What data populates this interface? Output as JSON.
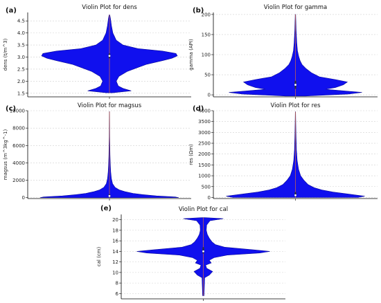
{
  "colors": {
    "violin": "#1010ee",
    "grid": "#cfcfcf",
    "axis": "#000000",
    "median": "#ffffff",
    "whisker": "#d96c3a"
  },
  "chart_data": [
    {
      "type": "violin",
      "panel_label": "(a)",
      "title": "Violin Plot for dens",
      "ylabel": "dens (t/m^3)",
      "ylim": [
        1.35,
        4.85
      ],
      "yticks": [
        "1.5",
        "2.0",
        "2.5",
        "3.0",
        "3.5",
        "4.0",
        "4.5"
      ],
      "xtick": "",
      "median": 3.05,
      "q1": 2.95,
      "q3": 3.15,
      "min": 1.52,
      "max": 4.75,
      "density": [
        [
          1.52,
          0.05
        ],
        [
          1.6,
          0.32
        ],
        [
          1.7,
          0.2
        ],
        [
          1.8,
          0.13
        ],
        [
          2.0,
          0.1
        ],
        [
          2.2,
          0.14
        ],
        [
          2.4,
          0.26
        ],
        [
          2.55,
          0.4
        ],
        [
          2.7,
          0.55
        ],
        [
          2.85,
          0.78
        ],
        [
          2.95,
          0.92
        ],
        [
          3.05,
          1.0
        ],
        [
          3.15,
          0.98
        ],
        [
          3.25,
          0.78
        ],
        [
          3.35,
          0.42
        ],
        [
          3.5,
          0.2
        ],
        [
          3.7,
          0.1
        ],
        [
          4.0,
          0.05
        ],
        [
          4.3,
          0.03
        ],
        [
          4.6,
          0.015
        ],
        [
          4.75,
          0.005
        ]
      ]
    },
    {
      "type": "violin",
      "panel_label": "(b)",
      "title": "Violin Plot for gamma",
      "ylabel": "gamma (API)",
      "ylim": [
        -5,
        205
      ],
      "yticks": [
        "0",
        "50",
        "100",
        "150",
        "200"
      ],
      "xtick": "",
      "median": 25,
      "q1": 15,
      "q3": 35,
      "min": -3,
      "max": 200,
      "density": [
        [
          -3,
          0.15
        ],
        [
          2,
          0.8
        ],
        [
          6,
          1.0
        ],
        [
          10,
          0.72
        ],
        [
          14,
          0.45
        ],
        [
          18,
          0.6
        ],
        [
          25,
          0.72
        ],
        [
          32,
          0.78
        ],
        [
          38,
          0.6
        ],
        [
          45,
          0.36
        ],
        [
          55,
          0.24
        ],
        [
          65,
          0.16
        ],
        [
          75,
          0.1
        ],
        [
          85,
          0.07
        ],
        [
          95,
          0.05
        ],
        [
          110,
          0.03
        ],
        [
          130,
          0.02
        ],
        [
          160,
          0.01
        ],
        [
          200,
          0.003
        ]
      ]
    },
    {
      "type": "violin",
      "panel_label": "(c)",
      "title": "Violin Plot for magsus",
      "ylabel": "magsus (m^3kg^-1)",
      "ylim": [
        -100,
        10000
      ],
      "yticks": [
        "0",
        "2000",
        "4000",
        "6000",
        "8000",
        "10000"
      ],
      "xtick": "",
      "median": 200,
      "q1": 100,
      "q3": 400,
      "min": 0,
      "max": 9900,
      "density": [
        [
          0,
          1.0
        ],
        [
          80,
          0.95
        ],
        [
          200,
          0.68
        ],
        [
          350,
          0.48
        ],
        [
          500,
          0.34
        ],
        [
          700,
          0.22
        ],
        [
          900,
          0.14
        ],
        [
          1200,
          0.08
        ],
        [
          1600,
          0.045
        ],
        [
          2200,
          0.028
        ],
        [
          3000,
          0.018
        ],
        [
          4000,
          0.012
        ],
        [
          5000,
          0.008
        ],
        [
          7000,
          0.004
        ],
        [
          9900,
          0.002
        ]
      ]
    },
    {
      "type": "violin",
      "panel_label": "(d)",
      "title": "Violin Plot for res",
      "ylabel": "res (Ωm)",
      "ylim": [
        -50,
        4000
      ],
      "yticks": [
        "0",
        "500",
        "1000",
        "1500",
        "2000",
        "2500",
        "3000",
        "3500",
        "4000"
      ],
      "xtick": "",
      "median": 100,
      "q1": 40,
      "q3": 250,
      "min": 0,
      "max": 3950,
      "density": [
        [
          0,
          0.9
        ],
        [
          60,
          1.0
        ],
        [
          150,
          0.78
        ],
        [
          250,
          0.54
        ],
        [
          350,
          0.38
        ],
        [
          450,
          0.27
        ],
        [
          600,
          0.18
        ],
        [
          800,
          0.12
        ],
        [
          1000,
          0.075
        ],
        [
          1300,
          0.045
        ],
        [
          1700,
          0.025
        ],
        [
          2200,
          0.014
        ],
        [
          3000,
          0.007
        ],
        [
          3950,
          0.002
        ]
      ]
    },
    {
      "type": "violin",
      "panel_label": "(e)",
      "title": "Violin Plot for cal",
      "ylabel": "cal (cm)",
      "ylim": [
        5,
        21
      ],
      "yticks": [
        "6",
        "8",
        "10",
        "12",
        "14",
        "16",
        "18",
        "20"
      ],
      "xtick": "",
      "median": 14,
      "q1": 13.6,
      "q3": 14.8,
      "min": 5.6,
      "max": 20.4,
      "density": [
        [
          5.6,
          0.01
        ],
        [
          7,
          0.015
        ],
        [
          9,
          0.02
        ],
        [
          9.5,
          0.09
        ],
        [
          10.2,
          0.14
        ],
        [
          10.8,
          0.05
        ],
        [
          11.4,
          0.035
        ],
        [
          11.8,
          0.12
        ],
        [
          12.3,
          0.09
        ],
        [
          12.8,
          0.16
        ],
        [
          13.3,
          0.36
        ],
        [
          13.7,
          0.85
        ],
        [
          14.0,
          1.0
        ],
        [
          14.3,
          0.75
        ],
        [
          14.8,
          0.32
        ],
        [
          15.3,
          0.18
        ],
        [
          15.8,
          0.13
        ],
        [
          16.5,
          0.09
        ],
        [
          17.2,
          0.06
        ],
        [
          18,
          0.045
        ],
        [
          19,
          0.05
        ],
        [
          19.8,
          0.1
        ],
        [
          20.2,
          0.3
        ],
        [
          20.4,
          0.02
        ]
      ]
    }
  ]
}
